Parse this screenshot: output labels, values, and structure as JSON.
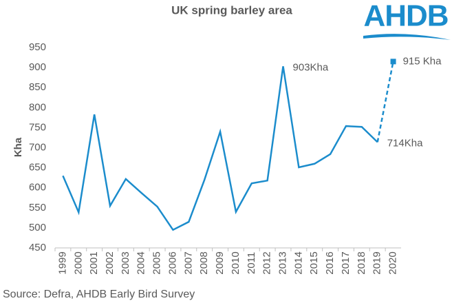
{
  "chart_data": {
    "type": "line",
    "title": "UK spring barley area",
    "logo": "AHDB",
    "y_label": "Kha",
    "source": "Source: Defra, AHDB Early Bird Survey",
    "categories": [
      "1999",
      "2000",
      "2001",
      "2002",
      "2003",
      "2004",
      "2005",
      "2006",
      "2007",
      "2008",
      "2009",
      "2010",
      "2011",
      "2012",
      "2013",
      "2014",
      "2015",
      "2016",
      "2017",
      "2018",
      "2019",
      "2020"
    ],
    "series": [
      {
        "color": "#1b8ccc",
        "style": "solid",
        "values": [
          630,
          539,
          783,
          555,
          622,
          587,
          553,
          495,
          515,
          620,
          740,
          540,
          611,
          618,
          903,
          651,
          660,
          684,
          754,
          752,
          714,
          null
        ],
        "value_labels": [
          null,
          null,
          null,
          null,
          null,
          null,
          null,
          null,
          null,
          null,
          null,
          null,
          null,
          null,
          "903Kha",
          null,
          null,
          null,
          null,
          null,
          "714Kha",
          null
        ]
      },
      {
        "color": "#1b8ccc",
        "style": "dashed",
        "marker": "square",
        "values": [
          null,
          null,
          null,
          null,
          null,
          null,
          null,
          null,
          null,
          null,
          null,
          null,
          null,
          null,
          null,
          null,
          null,
          null,
          null,
          null,
          714,
          915
        ],
        "value_labels": [
          null,
          null,
          null,
          null,
          null,
          null,
          null,
          null,
          null,
          null,
          null,
          null,
          null,
          null,
          null,
          null,
          null,
          null,
          null,
          null,
          null,
          "915 Kha"
        ]
      }
    ],
    "ylim": [
      450,
      950
    ],
    "yticks": [
      450,
      500,
      550,
      600,
      650,
      700,
      750,
      800,
      850,
      900,
      950
    ],
    "grid": false
  }
}
